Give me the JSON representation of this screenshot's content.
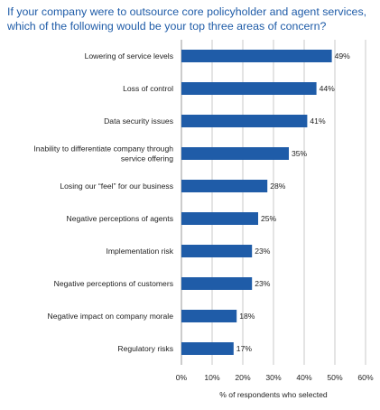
{
  "chart_data": {
    "type": "bar",
    "orientation": "horizontal",
    "title_lines": [
      "If your company were to outsource core policyholder and agent services,",
      "which of the following would be your top three areas of concern?"
    ],
    "categories": [
      [
        "Lowering of service levels"
      ],
      [
        "Loss of control"
      ],
      [
        "Data security issues"
      ],
      [
        "Inability to differentiate company through",
        "service offering"
      ],
      [
        "Losing our “feel” for our business"
      ],
      [
        "Negative perceptions of agents"
      ],
      [
        "Implementation risk"
      ],
      [
        "Negative perceptions of customers"
      ],
      [
        "Negative impact on company morale"
      ],
      [
        "Regulatory risks"
      ]
    ],
    "values": [
      49,
      44,
      41,
      35,
      28,
      25,
      23,
      23,
      18,
      17
    ],
    "value_labels": [
      "49%",
      "44%",
      "41%",
      "35%",
      "28%",
      "25%",
      "23%",
      "23%",
      "18%",
      "17%"
    ],
    "xticks": [
      "0%",
      "10%",
      "20%",
      "30%",
      "40%",
      "50%",
      "60%"
    ],
    "xlim": [
      0,
      60
    ],
    "xlabel": "% of respondents who selected",
    "grid": true,
    "bar_color": "#1f5ca8",
    "title_color": "#1f5ca8",
    "grid_color": "#c8c8c8"
  }
}
